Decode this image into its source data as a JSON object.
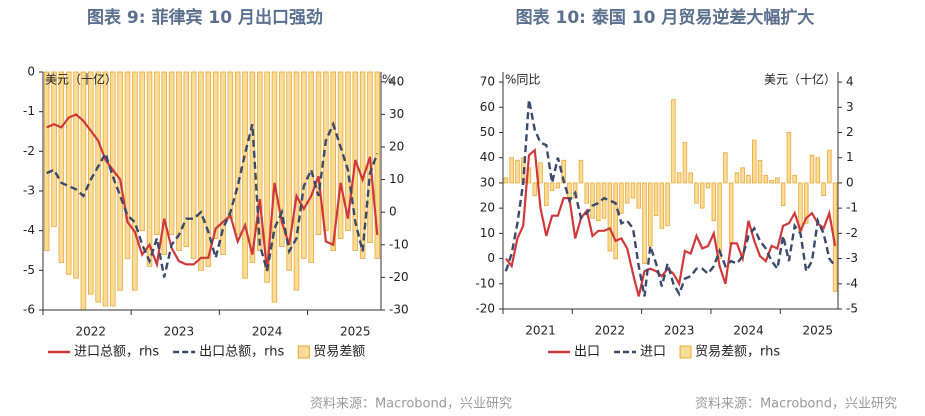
{
  "chart_data": [
    {
      "type": "combo",
      "title": "图表 9:  菲律宾 10 月出口强劲",
      "ylabel": "美元（十亿）",
      "y2label": "%",
      "categories": [
        null,
        null,
        null,
        null,
        null,
        null,
        "2022",
        null,
        null,
        null,
        null,
        null,
        null,
        null,
        null,
        null,
        null,
        null,
        "2023",
        null,
        null,
        null,
        null,
        null,
        null,
        null,
        null,
        null,
        null,
        null,
        "2024",
        null,
        null,
        null,
        null,
        null,
        null,
        null,
        null,
        null,
        null,
        null,
        "2025",
        null,
        null,
        null
      ],
      "ylim": [
        -6,
        0
      ],
      "yticks": [
        0,
        -1,
        -2,
        -3,
        -4,
        -5,
        -6
      ],
      "y2lim": [
        -30,
        43
      ],
      "y2ticks": [
        40,
        30,
        20,
        10,
        0,
        -10,
        -20,
        -30
      ],
      "series": [
        {
          "name": "进口总额，rhs",
          "kind": "line",
          "axis": "y2",
          "color": "#d0393b",
          "values": [
            26,
            27,
            26,
            29,
            30,
            28,
            25,
            22,
            16,
            13,
            10,
            -3,
            -6,
            -13,
            -10,
            -16,
            -2,
            -11,
            -15,
            -16,
            -16,
            -14,
            -14,
            -5,
            -3,
            -1,
            -9,
            -4,
            -13,
            4,
            -18,
            9,
            -3,
            -10,
            5,
            1,
            5,
            11,
            -9,
            -10,
            9,
            -2,
            16,
            10,
            17,
            -7
          ]
        },
        {
          "name": "出口总额，rhs",
          "kind": "line",
          "dash": true,
          "axis": "y2",
          "color": "#3a4a6b",
          "values": [
            12,
            13,
            9,
            8,
            7,
            5,
            10,
            14,
            18,
            11,
            5,
            -1,
            -3,
            -10,
            -15,
            -8,
            -20,
            -10,
            -7,
            -2,
            -2,
            0,
            -6,
            -14,
            -5,
            0,
            8,
            18,
            27,
            -10,
            -18,
            -5,
            0,
            -12,
            -8,
            8,
            13,
            5,
            22,
            27,
            20,
            13,
            -3,
            -12,
            12,
            18
          ]
        },
        {
          "name": "贸易差额",
          "kind": "bar",
          "color": "#eaa83a",
          "values": [
            -4.5,
            -3.9,
            -4.8,
            -5.1,
            -5.2,
            -6.0,
            -5.6,
            -5.8,
            -5.9,
            -5.9,
            -5.5,
            -4.7,
            -5.5,
            -4.0,
            -4.9,
            -4.1,
            -4.6,
            -4.1,
            -4.5,
            -4.4,
            -4.7,
            -5.0,
            -4.9,
            -4.2,
            -4.6,
            -3.7,
            -4.1,
            -5.2,
            -4.8,
            -4.5,
            -5.3,
            -5.8,
            -4.4,
            -5.0,
            -5.5,
            -4.7,
            -4.8,
            -4.1,
            -4.0,
            -4.5,
            -4.2,
            -4.0,
            -4.5,
            -4.7,
            -4.3,
            -4.7
          ]
        }
      ],
      "source": "资料来源：Macrobond，兴业研究"
    },
    {
      "type": "combo",
      "title": "图表 10: 泰国 10 月贸易逆差大幅扩大",
      "ylabel": "%同比",
      "y2label": "美元（十亿）",
      "categories": [
        null,
        null,
        null,
        null,
        null,
        null,
        "2021",
        null,
        null,
        null,
        null,
        null,
        null,
        null,
        null,
        null,
        null,
        null,
        "2022",
        null,
        null,
        null,
        null,
        null,
        null,
        null,
        null,
        null,
        null,
        null,
        "2023",
        null,
        null,
        null,
        null,
        null,
        null,
        null,
        null,
        null,
        null,
        null,
        "2024",
        null,
        null,
        null,
        null,
        null,
        null,
        null,
        null,
        null,
        null,
        null,
        "2025",
        null,
        null,
        null
      ],
      "ylim": [
        -20,
        74
      ],
      "yticks": [
        70,
        60,
        50,
        40,
        30,
        20,
        10,
        0,
        -10,
        -20
      ],
      "y2lim": [
        -5,
        4.4
      ],
      "y2ticks": [
        4,
        3,
        2,
        1,
        0,
        -1,
        -2,
        -3,
        -4,
        -5
      ],
      "series": [
        {
          "name": "出口",
          "kind": "line",
          "color": "#d0393b",
          "values": [
            0,
            -3,
            8,
            13,
            41,
            43,
            20,
            9,
            17,
            17,
            24,
            24,
            8,
            16,
            19,
            9,
            11,
            11,
            12,
            7,
            8,
            4,
            -6,
            -15,
            -5,
            -4,
            -5,
            -7,
            -4,
            -6,
            -10,
            3,
            2,
            9,
            4,
            5,
            10,
            -3,
            -10,
            6,
            6,
            0,
            15,
            7,
            1,
            -1,
            5,
            4,
            13,
            14,
            18,
            11,
            16,
            18,
            14,
            12,
            18,
            5
          ]
        },
        {
          "name": "进口",
          "kind": "line",
          "dash": true,
          "color": "#3a4a6b",
          "values": [
            -5,
            2,
            14,
            30,
            63,
            51,
            46,
            45,
            30,
            40,
            31,
            23,
            26,
            16,
            18,
            21,
            22,
            24,
            23,
            22,
            14,
            15,
            12,
            -3,
            -15,
            5,
            -2,
            -11,
            -2,
            -10,
            -14,
            -8,
            -7,
            -4,
            -4,
            -6,
            -3,
            3,
            -3,
            -1,
            -2,
            1,
            9,
            12,
            7,
            4,
            -1,
            -4,
            9,
            -1,
            13,
            10,
            -5,
            -1,
            15,
            10,
            0,
            -3
          ]
        },
        {
          "name": "贸易差额，rhs",
          "kind": "bar",
          "axis": "y2",
          "color": "#eaa83a",
          "values": [
            0.2,
            1.0,
            0.9,
            1.0,
            0.6,
            -0.5,
            0.8,
            -0.9,
            -0.3,
            -0.2,
            0.9,
            -0.6,
            -0.6,
            0.9,
            -0.8,
            -1.4,
            -1.5,
            -1.4,
            -2.7,
            -3.0,
            -1.2,
            -0.8,
            -0.6,
            -1.0,
            -3.2,
            -2.5,
            -1.3,
            -1.8,
            -1.7,
            3.3,
            0.4,
            1.6,
            0.4,
            -0.8,
            -1.0,
            -0.2,
            -1.5,
            -3.0,
            1.2,
            -2.4,
            0.4,
            0.6,
            0.3,
            1.7,
            0.9,
            0.3,
            0.1,
            0.2,
            -0.9,
            2.0,
            0.3,
            -1.9,
            -1.6,
            1.1,
            1.0,
            -0.5,
            1.3,
            -4.3
          ]
        }
      ],
      "source": "资料来源：Macrobond，兴业研究"
    }
  ]
}
